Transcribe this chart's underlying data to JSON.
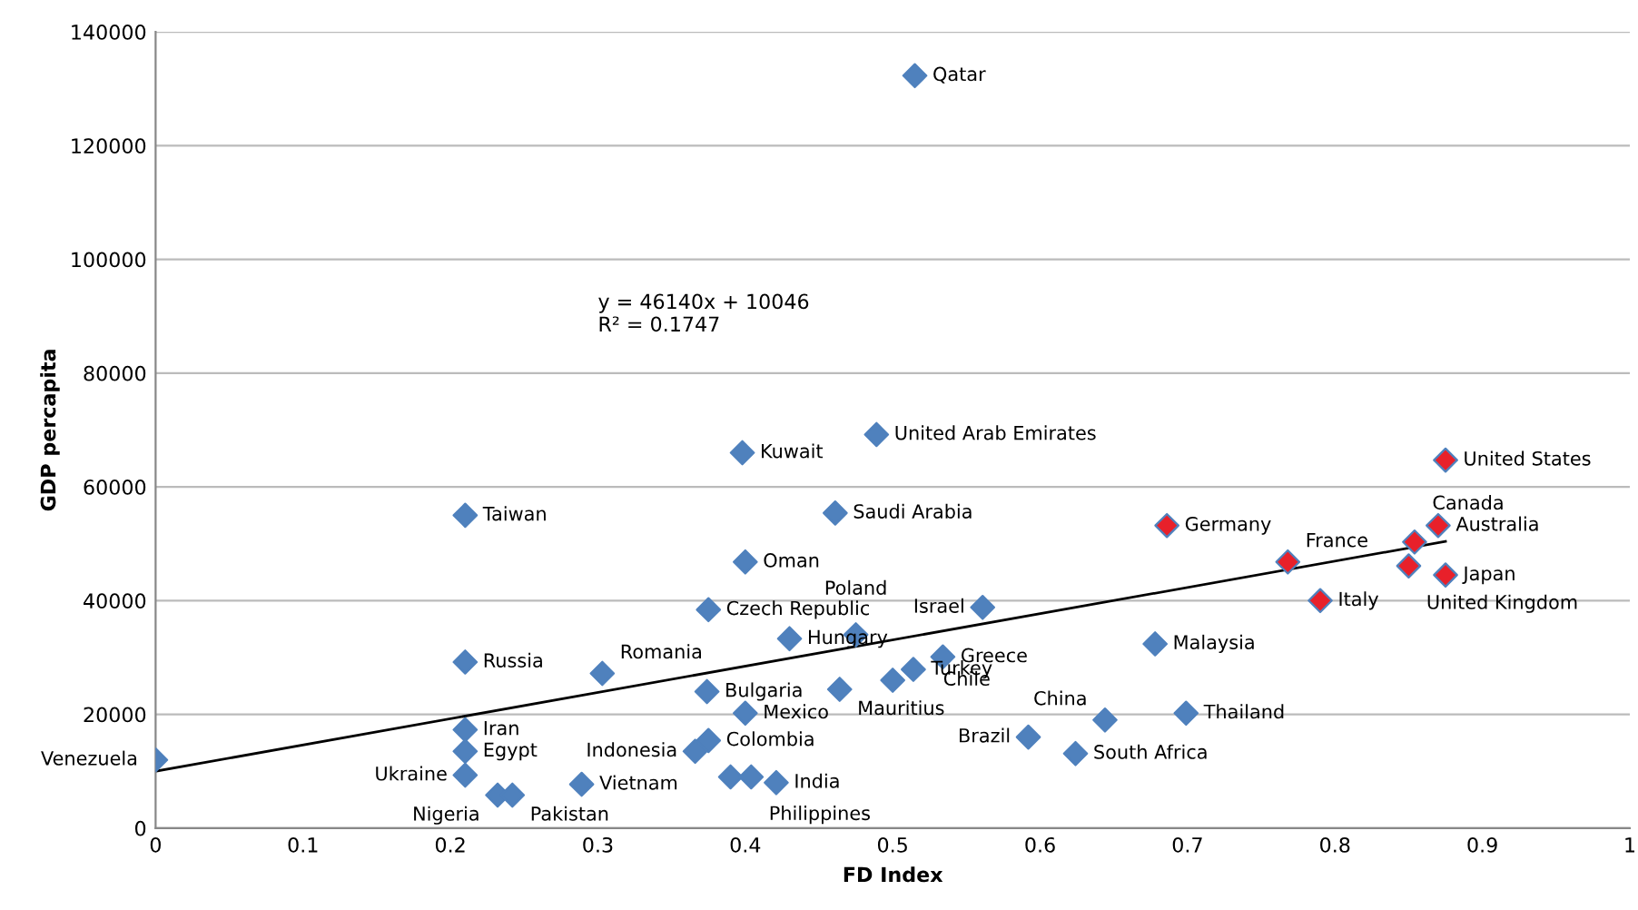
{
  "chart_data": {
    "type": "scatter",
    "xlabel": "FD Index",
    "ylabel": "GDP percapita",
    "xlim": [
      0,
      1
    ],
    "xticks": [
      0,
      0.1,
      0.2,
      0.3,
      0.4,
      0.5,
      0.6,
      0.7,
      0.8,
      0.9,
      1
    ],
    "ylim": [
      0,
      140000
    ],
    "yticks": [
      0,
      20000,
      40000,
      60000,
      80000,
      100000,
      120000,
      140000
    ],
    "grid": "y",
    "marker": "diamond",
    "legend": false,
    "series": [
      {
        "color": "#4f81bd",
        "x": [
          0,
          0.21,
          0.21,
          0.21,
          0.21,
          0.21,
          0.232,
          0.242,
          0.289,
          0.303,
          0.375,
          0.4,
          0.43,
          0.475,
          0.374,
          0.4,
          0.464,
          0.5,
          0.514,
          0.534,
          0.375,
          0.366,
          0.39,
          0.404,
          0.421,
          0.592,
          0.624,
          0.644,
          0.699,
          0.678,
          0.561,
          0.515,
          0.398,
          0.489,
          0.461
        ],
        "values": [
          12000,
          55000,
          29200,
          17300,
          13500,
          9300,
          5800,
          5800,
          7700,
          27200,
          38400,
          46800,
          33300,
          34000,
          24000,
          20200,
          24400,
          26000,
          27900,
          30100,
          15400,
          13500,
          9000,
          9000,
          8000,
          16000,
          13100,
          19000,
          20200,
          32400,
          38800,
          132300,
          66000,
          69200,
          55400
        ]
      },
      {
        "color": "#e8202a",
        "x": [
          0.686,
          0.768,
          0.79,
          0.875,
          0.87,
          0.854,
          0.85,
          0.875
        ],
        "values": [
          53200,
          46800,
          40000,
          64700,
          53200,
          50300,
          46100,
          44500
        ]
      },
      {
        "type": "line",
        "color": "#000000",
        "marker": "none",
        "x": [
          0,
          0.875
        ],
        "values": [
          10000,
          50400
        ]
      }
    ],
    "annotations": [
      {
        "text": "Venezuela",
        "x": 0,
        "y": 12000
      },
      {
        "text": "Taiwan",
        "x": 0.21,
        "y": 55000
      },
      {
        "text": "Russia",
        "x": 0.21,
        "y": 29200
      },
      {
        "text": "Iran",
        "x": 0.21,
        "y": 17300
      },
      {
        "text": "Egypt",
        "x": 0.21,
        "y": 13500
      },
      {
        "text": "Ukraine",
        "x": 0.21,
        "y": 9300
      },
      {
        "text": "Nigeria",
        "x": 0.232,
        "y": 5800
      },
      {
        "text": "Pakistan",
        "x": 0.242,
        "y": 5800
      },
      {
        "text": "Vietnam",
        "x": 0.289,
        "y": 7700
      },
      {
        "text": "Romania",
        "x": 0.303,
        "y": 27200
      },
      {
        "text": "Czech Republic",
        "x": 0.375,
        "y": 38400
      },
      {
        "text": "Oman",
        "x": 0.4,
        "y": 46800
      },
      {
        "text": "Hungary",
        "x": 0.43,
        "y": 33300
      },
      {
        "text": "Poland",
        "x": 0.475,
        "y": 34000
      },
      {
        "text": "Bulgaria",
        "x": 0.374,
        "y": 24000
      },
      {
        "text": "Mexico",
        "x": 0.4,
        "y": 20200
      },
      {
        "text": "Mauritius",
        "x": 0.464,
        "y": 24400
      },
      {
        "text": "Chile",
        "x": 0.5,
        "y": 26000
      },
      {
        "text": "Turkey",
        "x": 0.514,
        "y": 27900
      },
      {
        "text": "Greece",
        "x": 0.534,
        "y": 30100
      },
      {
        "text": "Colombia",
        "x": 0.375,
        "y": 15400
      },
      {
        "text": "Indonesia",
        "x": 0.366,
        "y": 13500
      },
      {
        "text": "Philippines",
        "x": 0.404,
        "y": 9000
      },
      {
        "text": "India",
        "x": 0.421,
        "y": 8000
      },
      {
        "text": "Brazil",
        "x": 0.592,
        "y": 16000
      },
      {
        "text": "South Africa",
        "x": 0.624,
        "y": 13100
      },
      {
        "text": "China",
        "x": 0.644,
        "y": 19000
      },
      {
        "text": "Thailand",
        "x": 0.699,
        "y": 20200
      },
      {
        "text": "Malaysia",
        "x": 0.678,
        "y": 32400
      },
      {
        "text": "Israel",
        "x": 0.561,
        "y": 38800
      },
      {
        "text": "Qatar",
        "x": 0.515,
        "y": 132300
      },
      {
        "text": "Kuwait",
        "x": 0.398,
        "y": 66000
      },
      {
        "text": "United Arab Emirates",
        "x": 0.489,
        "y": 69200
      },
      {
        "text": "Saudi Arabia",
        "x": 0.461,
        "y": 55400
      },
      {
        "text": "Germany",
        "x": 0.686,
        "y": 53200
      },
      {
        "text": "France",
        "x": 0.768,
        "y": 46800
      },
      {
        "text": "Italy",
        "x": 0.79,
        "y": 40000
      },
      {
        "text": "United States",
        "x": 0.875,
        "y": 64700
      },
      {
        "text": "Australia",
        "x": 0.87,
        "y": 53200
      },
      {
        "text": "Canada",
        "x": 0.854,
        "y": 50300
      },
      {
        "text": "United Kingdom",
        "x": 0.85,
        "y": 46100
      },
      {
        "text": "Japan",
        "x": 0.875,
        "y": 44500
      },
      "y = 46140x + 10046\nR² = 0.1747"
    ]
  }
}
